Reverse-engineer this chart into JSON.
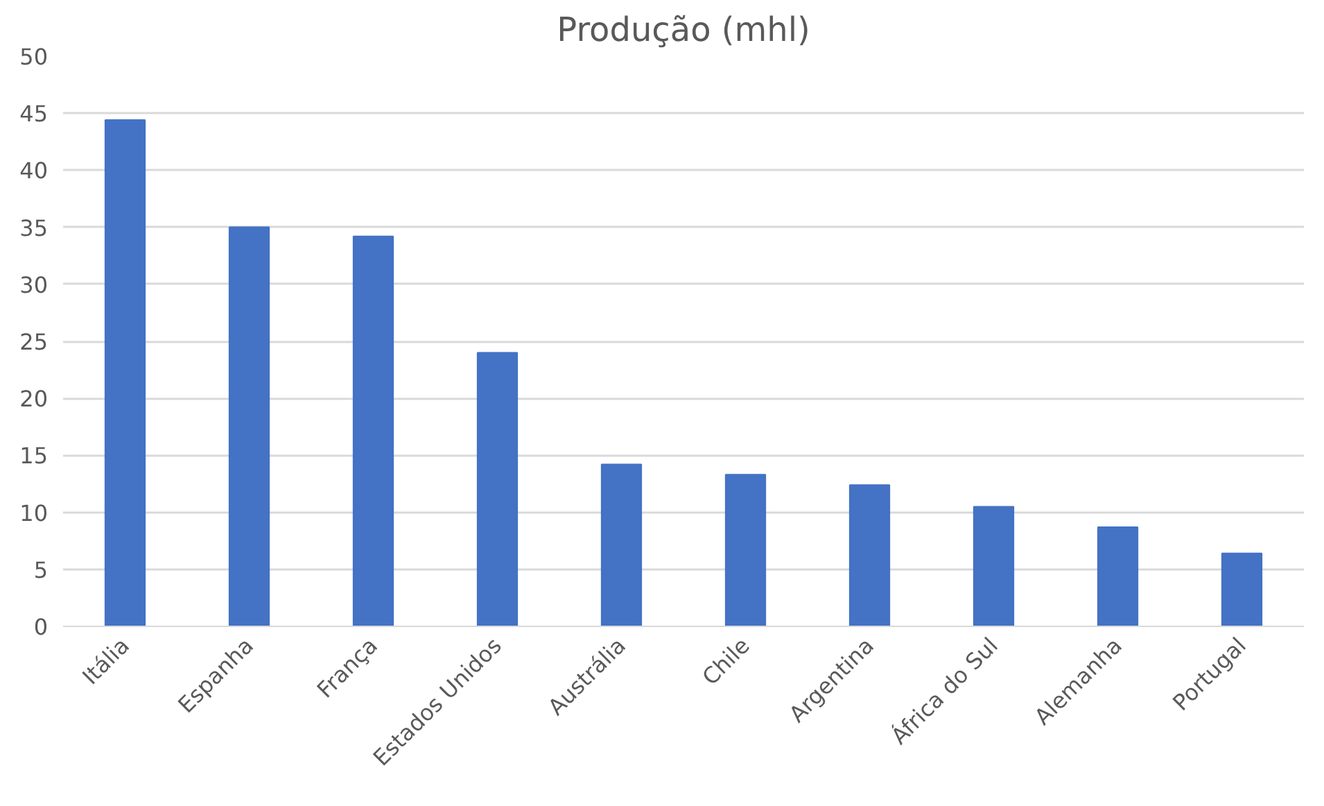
{
  "chart_data": {
    "type": "bar",
    "title": "Produção (mhl)",
    "categories": [
      "Itália",
      "Espanha",
      "França",
      "Estados Unidos",
      "Austrália",
      "Chile",
      "Argentina",
      "África do Sul",
      "Alemanha",
      "Portugal"
    ],
    "values": [
      44.4,
      35.0,
      34.2,
      24.0,
      14.2,
      13.3,
      12.4,
      10.5,
      8.7,
      6.4
    ],
    "color": "#4472c4",
    "ylim": [
      0,
      50
    ],
    "yticks": [
      0,
      5,
      10,
      15,
      20,
      25,
      30,
      35,
      40,
      45,
      50
    ],
    "grid": "y"
  }
}
